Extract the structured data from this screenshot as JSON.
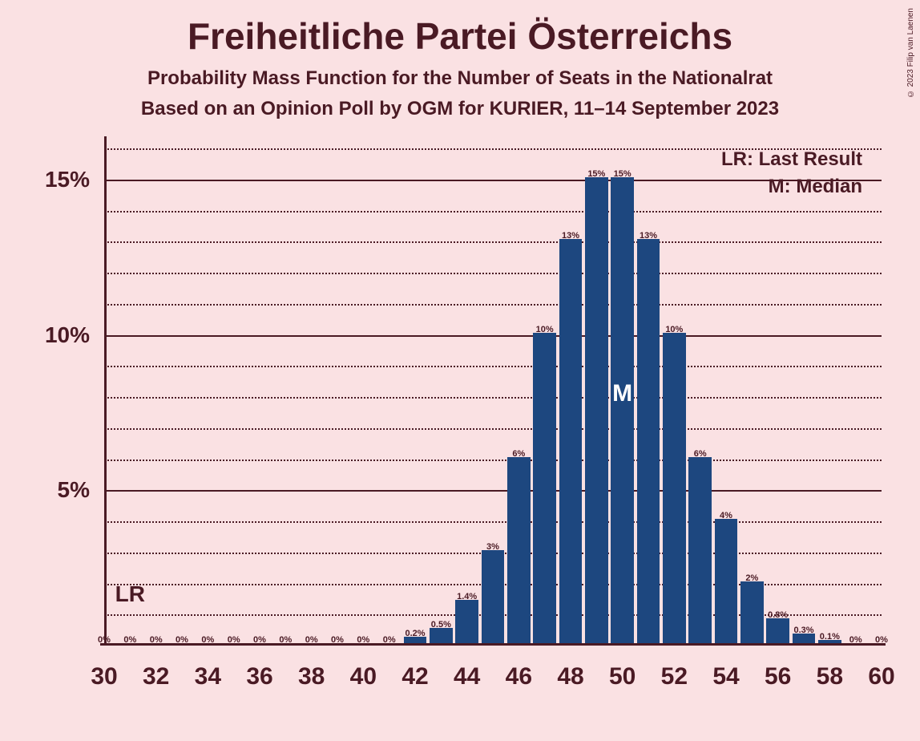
{
  "copyright": "© 2023 Filip van Laenen",
  "title": "Freiheitliche Partei Österreichs",
  "subtitle1": "Probability Mass Function for the Number of Seats in the Nationalrat",
  "subtitle2": "Based on an Opinion Poll by OGM for KURIER, 11–14 September 2023",
  "legend": {
    "lr": "LR: Last Result",
    "m": "M: Median"
  },
  "lr_marker": "LR",
  "median_marker": "M",
  "chart": {
    "type": "bar",
    "background_color": "#fae1e3",
    "bar_color": "#1d477f",
    "text_color": "#4a1a24",
    "axis_color": "#4a1a24",
    "grid_color": "#4a1a24",
    "y_min": 0,
    "y_max": 16,
    "y_major_ticks": [
      5,
      10,
      15
    ],
    "y_major_labels": [
      "5%",
      "10%",
      "15%"
    ],
    "y_minor_step": 1,
    "x_min": 30,
    "x_max": 60,
    "x_tick_step": 2,
    "x_tick_labels": [
      "30",
      "32",
      "34",
      "36",
      "38",
      "40",
      "42",
      "44",
      "46",
      "48",
      "50",
      "52",
      "54",
      "56",
      "58",
      "60"
    ],
    "bar_width_ratio": 0.88,
    "lr_seat": 31,
    "median_seat": 50,
    "seats": [
      30,
      31,
      32,
      33,
      34,
      35,
      36,
      37,
      38,
      39,
      40,
      41,
      42,
      43,
      44,
      45,
      46,
      47,
      48,
      49,
      50,
      51,
      52,
      53,
      54,
      55,
      56,
      57,
      58,
      59,
      60
    ],
    "values": [
      0,
      0,
      0,
      0,
      0,
      0,
      0,
      0,
      0,
      0,
      0,
      0,
      0.2,
      0.5,
      1.4,
      3,
      6,
      10,
      13,
      15,
      15,
      13,
      10,
      6,
      4,
      2,
      0.8,
      0.3,
      0.1,
      0,
      0
    ],
    "value_labels": [
      "0%",
      "0%",
      "0%",
      "0%",
      "0%",
      "0%",
      "0%",
      "0%",
      "0%",
      "0%",
      "0%",
      "0%",
      "0.2%",
      "0.5%",
      "1.4%",
      "3%",
      "6%",
      "10%",
      "13%",
      "15%",
      "15%",
      "13%",
      "10%",
      "6%",
      "4%",
      "2%",
      "0.8%",
      "0.3%",
      "0.1%",
      "0%",
      "0%"
    ]
  }
}
